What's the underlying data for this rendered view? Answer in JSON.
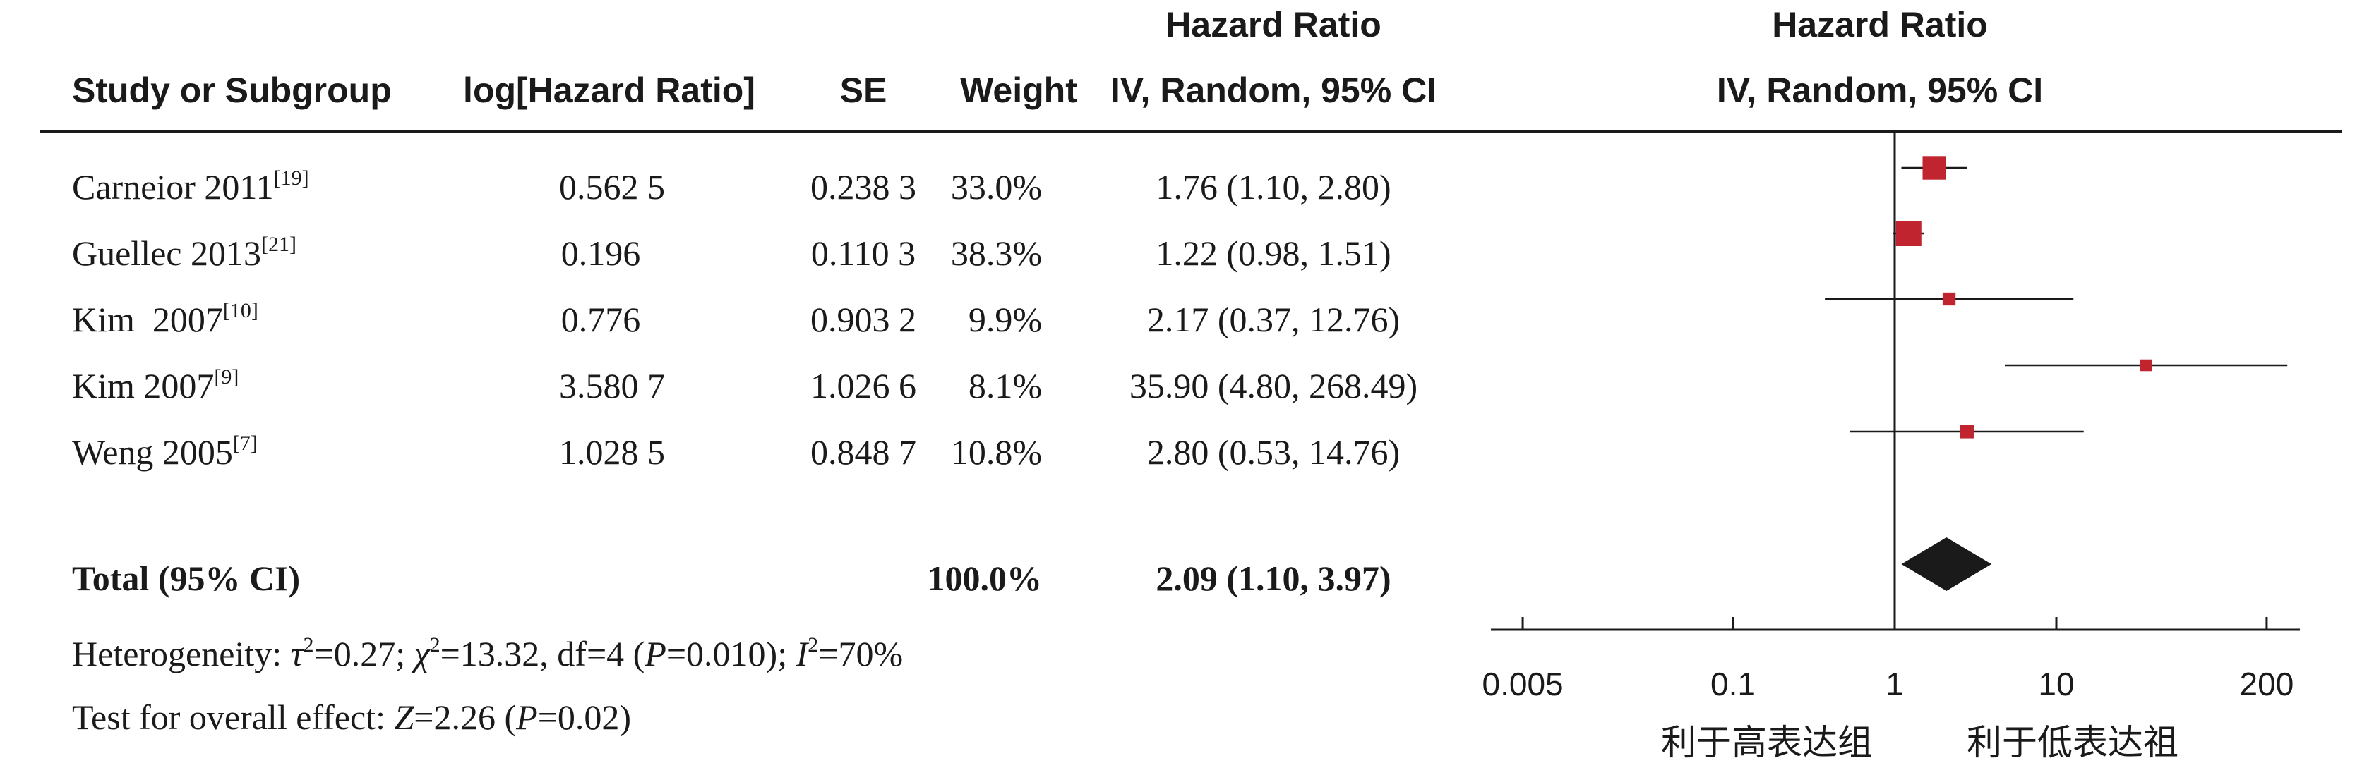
{
  "headers": {
    "study": "Study or Subgroup",
    "loghr": "log[Hazard Ratio]",
    "se": "SE",
    "weight": "Weight",
    "hr_top": "Hazard Ratio",
    "hr_sub": "IV, Random, 95% CI",
    "plot_top": "Hazard Ratio",
    "plot_sub": "IV, Random, 95% CI"
  },
  "rows": [
    {
      "study": "Carneior 2011",
      "ref": "[19]",
      "loghr": "0.562 5",
      "se": "0.238 3",
      "weight": "33.0%",
      "ci": "1.76 (1.10, 2.80)"
    },
    {
      "study": "Guellec 2013",
      "ref": "[21]",
      "loghr": "0.196",
      "se": "0.110 3",
      "weight": "38.3%",
      "ci": "1.22 (0.98, 1.51)"
    },
    {
      "study": "Kim  2007",
      "ref": "[10]",
      "loghr": "0.776",
      "se": "0.903 2",
      "weight": "9.9%",
      "ci": "2.17 (0.37, 12.76)"
    },
    {
      "study": "Kim 2007",
      "ref": "[9]",
      "loghr": "3.580 7",
      "se": "1.026 6",
      "weight": "8.1%",
      "ci": "35.90 (4.80, 268.49)"
    },
    {
      "study": "Weng 2005",
      "ref": "[7]",
      "loghr": "1.028 5",
      "se": "0.848 7",
      "weight": "10.8%",
      "ci": "2.80 (0.53, 14.76)"
    }
  ],
  "total": {
    "label": "Total (95% CI)",
    "weight": "100.0%",
    "ci": "2.09 (1.10, 3.97)"
  },
  "heterogeneity": {
    "prefix": "Heterogeneity: ",
    "tau_sym": "τ",
    "tau_val": "=0.27; ",
    "chi_sym": "χ",
    "chi_val": "=13.32, df=4 (",
    "p_sym": "P",
    "p_val": "=0.010); ",
    "i_sym": "I",
    "i_val": "=70%",
    "sq": "2"
  },
  "overall": {
    "prefix": "Test for overall effect: ",
    "z_sym": "Z",
    "z_val": "=2.26 (",
    "p_sym": "P",
    "p_val": "=0.02)"
  },
  "chart_data": {
    "type": "forest",
    "scale": "log",
    "xlim": [
      0.005,
      200
    ],
    "ticks": [
      0.005,
      0.1,
      1,
      10,
      200
    ],
    "tick_labels": [
      "0.005",
      "0.1",
      "1",
      "10",
      "200"
    ],
    "null_line": 1,
    "favours_left": "利于高表达组",
    "favours_right": "利于低表达祖",
    "studies": [
      {
        "hr": 1.76,
        "lo": 1.1,
        "hi": 2.8,
        "weight": 33.0
      },
      {
        "hr": 1.22,
        "lo": 0.98,
        "hi": 1.51,
        "weight": 38.3
      },
      {
        "hr": 2.17,
        "lo": 0.37,
        "hi": 12.76,
        "weight": 9.9
      },
      {
        "hr": 35.9,
        "lo": 4.8,
        "hi": 268.49,
        "weight": 8.1
      },
      {
        "hr": 2.8,
        "lo": 0.53,
        "hi": 14.76,
        "weight": 10.8
      }
    ],
    "pooled": {
      "hr": 2.09,
      "lo": 1.1,
      "hi": 3.97
    },
    "colors": {
      "square": "#c0242e",
      "line": "#1a1a1a",
      "diamond": "#1a1a1a"
    }
  }
}
